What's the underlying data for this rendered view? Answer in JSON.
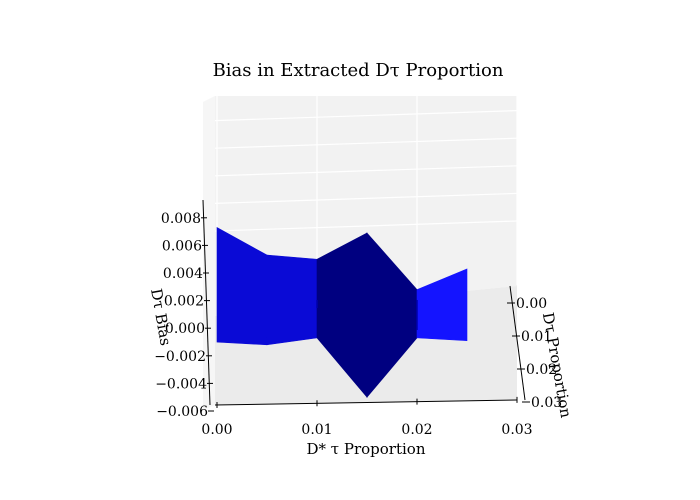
{
  "chart_data": {
    "type": "surface",
    "title": "Bias in Extracted Dτ Proportion",
    "xlabel": "D* τ Proportion",
    "ylabel": "Dτ Proportion",
    "zlabel": "Dτ Bias",
    "xlim": [
      0.0,
      0.03
    ],
    "ylim": [
      0.0,
      0.03
    ],
    "zlim": [
      -0.006,
      0.008
    ],
    "x_ticks": [
      "0.00",
      "0.01",
      "0.02",
      "0.03"
    ],
    "y_ticks": [
      "0.00",
      "0.01",
      "0.02",
      "0.03"
    ],
    "z_ticks": [
      "−0.006",
      "−0.004",
      "−0.002",
      "0.000",
      "0.002",
      "0.004",
      "0.006",
      "0.008"
    ],
    "grid": true,
    "x": [
      0.0,
      0.005,
      0.01,
      0.015,
      0.02,
      0.025
    ],
    "surface_top": [
      0.0075,
      0.0055,
      0.0052,
      0.0071,
      0.003,
      0.0045
    ],
    "surface_bottom": [
      -0.0008,
      -0.001,
      -0.0005,
      -0.0048,
      -0.0005,
      -0.0007
    ],
    "colors": [
      "#0a0ad6",
      "#0a0ad6",
      "#000080",
      "#000080",
      "#1414ff"
    ]
  }
}
